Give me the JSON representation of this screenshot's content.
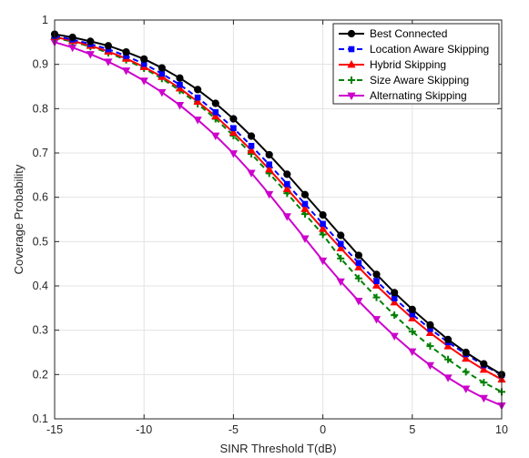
{
  "chart_data": {
    "type": "line",
    "xlabel": "SINR Threshold T(dB)",
    "ylabel": "Coverage Probability",
    "xlim": [
      -15,
      10
    ],
    "ylim": [
      0.1,
      1
    ],
    "xticks": [
      -15,
      -10,
      -5,
      0,
      5,
      10
    ],
    "yticks": [
      0.1,
      0.2,
      0.3,
      0.4,
      0.5,
      0.6,
      0.7,
      0.8,
      0.9,
      1
    ],
    "xtick_labels": [
      "-15",
      "-10",
      "-5",
      "0",
      "5",
      "10"
    ],
    "ytick_labels": [
      "0.1",
      "0.2",
      "0.3",
      "0.4",
      "0.5",
      "0.6",
      "0.7",
      "0.8",
      "0.9",
      "1"
    ],
    "grid": true,
    "legend_position": "top-right",
    "x": [
      -15,
      -14,
      -13,
      -12,
      -11,
      -10,
      -9,
      -8,
      -7,
      -6,
      -5,
      -4,
      -3,
      -2,
      -1,
      0,
      1,
      2,
      3,
      4,
      5,
      6,
      7,
      8,
      9,
      10
    ],
    "series": [
      {
        "name": "Best Connected",
        "color": "#000000",
        "line_style": "solid",
        "marker": "circle",
        "values": [
          0.968,
          0.961,
          0.952,
          0.942,
          0.928,
          0.912,
          0.892,
          0.869,
          0.843,
          0.812,
          0.777,
          0.738,
          0.696,
          0.652,
          0.606,
          0.56,
          0.514,
          0.469,
          0.426,
          0.385,
          0.347,
          0.312,
          0.279,
          0.25,
          0.224,
          0.2
        ]
      },
      {
        "name": "Location Aware Skipping",
        "color": "#0000ff",
        "line_style": "dashed",
        "marker": "square",
        "values": [
          0.964,
          0.956,
          0.946,
          0.934,
          0.919,
          0.901,
          0.879,
          0.854,
          0.825,
          0.792,
          0.756,
          0.716,
          0.674,
          0.63,
          0.585,
          0.54,
          0.495,
          0.452,
          0.411,
          0.372,
          0.336,
          0.303,
          0.273,
          0.246,
          0.221,
          0.199
        ]
      },
      {
        "name": "Hybrid Skipping",
        "color": "#ff0000",
        "line_style": "solid",
        "marker": "triangle-up",
        "values": [
          0.962,
          0.953,
          0.942,
          0.929,
          0.913,
          0.894,
          0.872,
          0.846,
          0.816,
          0.783,
          0.746,
          0.706,
          0.663,
          0.619,
          0.574,
          0.529,
          0.485,
          0.442,
          0.401,
          0.363,
          0.327,
          0.294,
          0.264,
          0.236,
          0.211,
          0.189
        ]
      },
      {
        "name": "Size Aware Skipping",
        "color": "#008000",
        "line_style": "dashed",
        "marker": "plus",
        "values": [
          0.96,
          0.951,
          0.94,
          0.926,
          0.91,
          0.891,
          0.868,
          0.841,
          0.811,
          0.777,
          0.739,
          0.698,
          0.654,
          0.609,
          0.562,
          0.516,
          0.462,
          0.417,
          0.374,
          0.334,
          0.297,
          0.264,
          0.234,
          0.206,
          0.182,
          0.161
        ]
      },
      {
        "name": "Alternating Skipping",
        "color": "#cc00cc",
        "line_style": "solid",
        "marker": "triangle-down",
        "values": [
          0.95,
          0.938,
          0.923,
          0.906,
          0.886,
          0.863,
          0.837,
          0.808,
          0.775,
          0.739,
          0.699,
          0.655,
          0.607,
          0.557,
          0.507,
          0.457,
          0.41,
          0.366,
          0.325,
          0.287,
          0.252,
          0.221,
          0.193,
          0.168,
          0.147,
          0.13
        ]
      }
    ]
  }
}
